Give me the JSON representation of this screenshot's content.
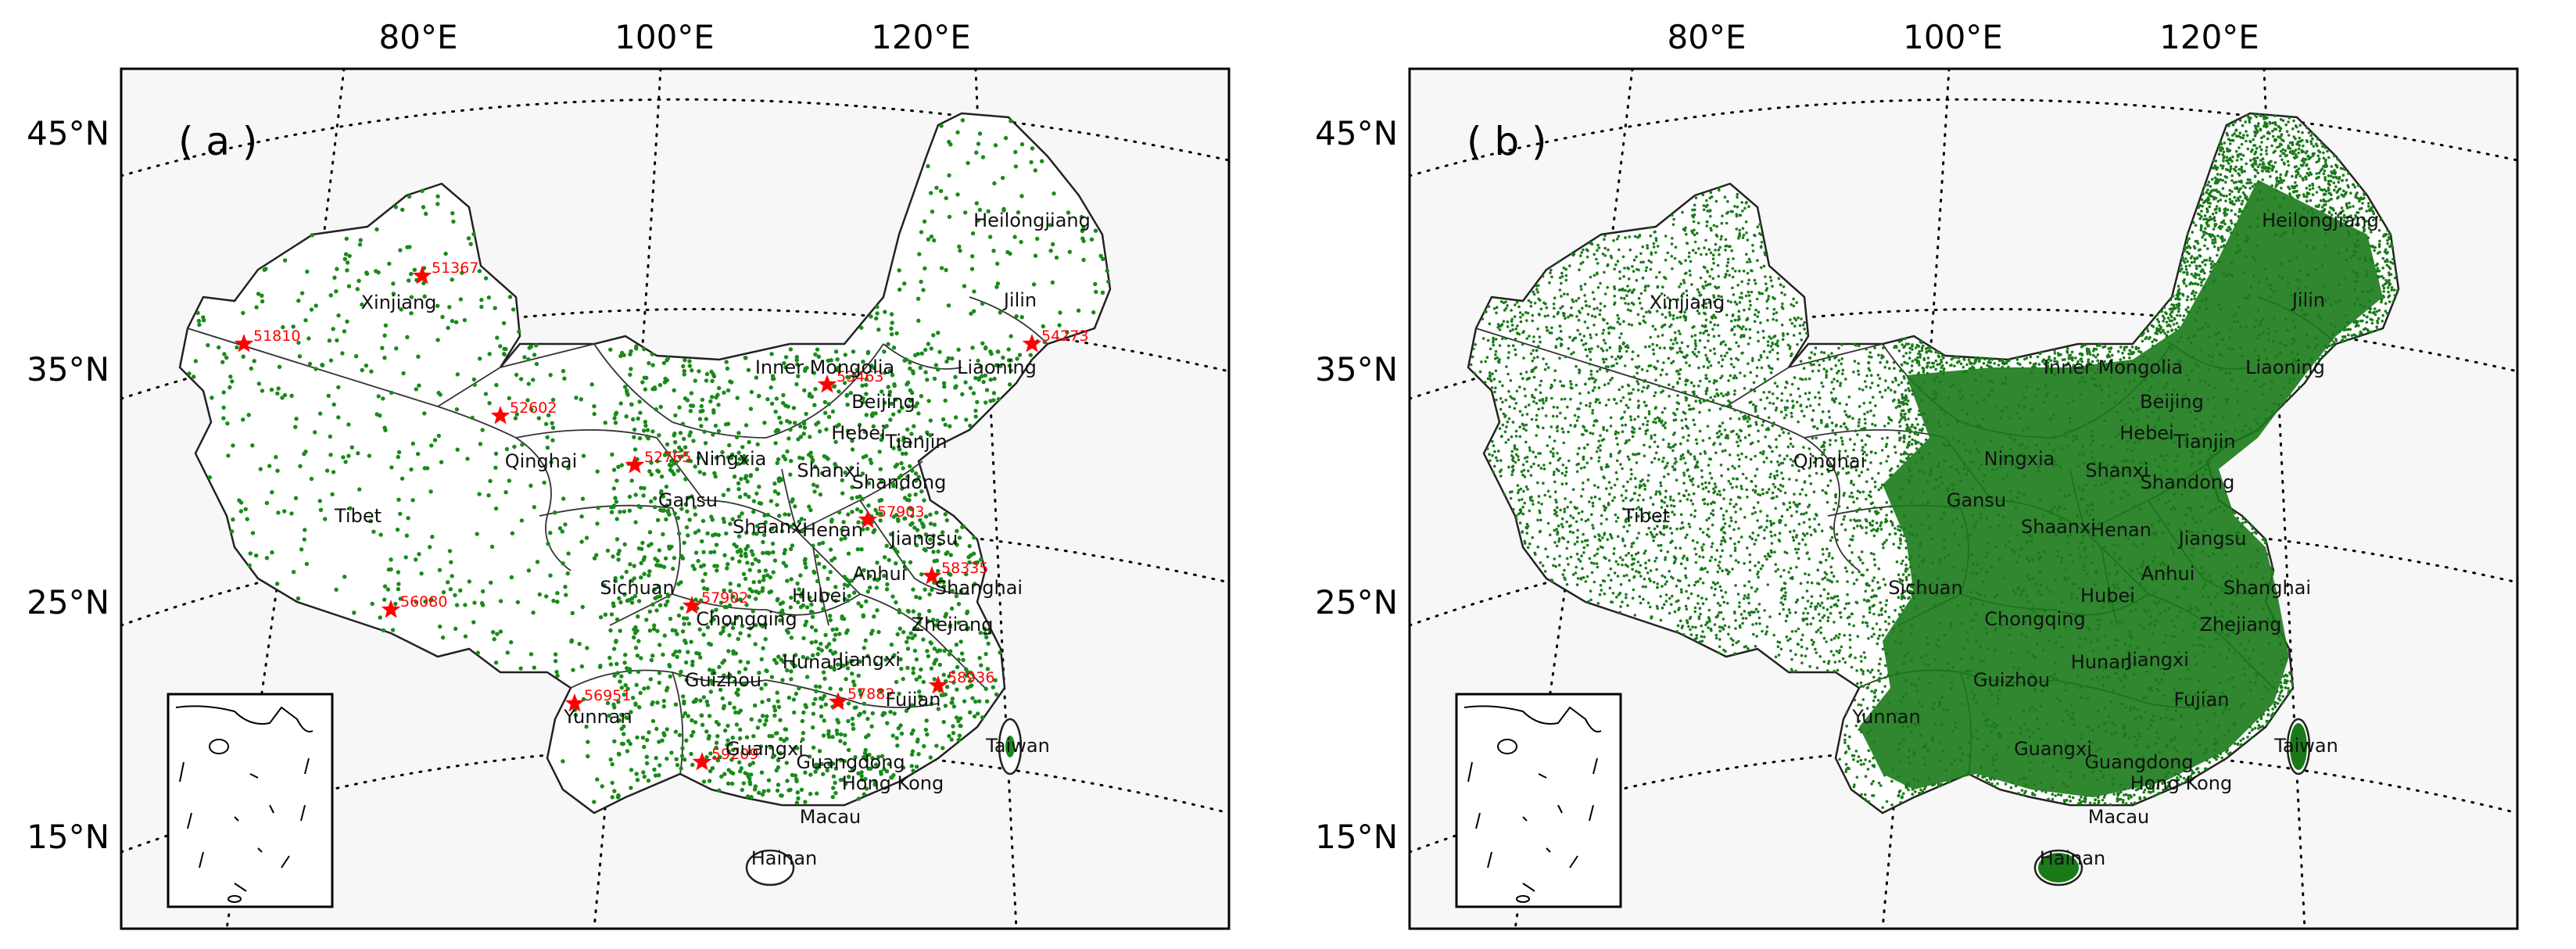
{
  "figure": {
    "panels": [
      {
        "id": "a",
        "label": "( a )",
        "lon_ticks": [
          "80°E",
          "100°E",
          "120°E"
        ],
        "lat_ticks": [
          "45°N",
          "35°N",
          "25°N",
          "15°N"
        ],
        "provinces": [
          "Heilongjiang",
          "Jilin",
          "Liaoning",
          "Inner Mongolia",
          "Beijing",
          "Tianjin",
          "Hebei",
          "Shanxi",
          "Shandong",
          "Xinjiang",
          "Qinghai",
          "Tibet",
          "Gansu",
          "Ningxia",
          "Shaanxi",
          "Henan",
          "Jiangsu",
          "Anhui",
          "Shanghai",
          "Sichuan",
          "Chongqing",
          "Hubei",
          "Zhejiang",
          "Guizhou",
          "Hunan",
          "Jiangxi",
          "Fujian",
          "Yunnan",
          "Guangxi",
          "Guangdong",
          "Taiwan",
          "Hong Kong",
          "Macau",
          "Hainan"
        ],
        "stations": [
          "51367",
          "51810",
          "52602",
          "52765",
          "53463",
          "54273",
          "57902",
          "56080",
          "57903",
          "58335",
          "56951",
          "57882",
          "58936",
          "59209"
        ],
        "points": "sparse",
        "marker_color": "#ff0000",
        "point_color": "#1a8a1a"
      },
      {
        "id": "b",
        "label": "( b )",
        "lon_ticks": [
          "80°E",
          "100°E",
          "120°E"
        ],
        "lat_ticks": [
          "45°N",
          "35°N",
          "25°N",
          "15°N"
        ],
        "provinces": [
          "Heilongjiang",
          "Jilin",
          "Liaoning",
          "Inner Mongolia",
          "Beijing",
          "Tianjin",
          "Hebei",
          "Shanxi",
          "Shandong",
          "Xinjiang",
          "Qinghai",
          "Tibet",
          "Gansu",
          "Ningxia",
          "Shaanxi",
          "Henan",
          "Jiangsu",
          "Anhui",
          "Shanghai",
          "Sichuan",
          "Chongqing",
          "Hubei",
          "Zhejiang",
          "Guizhou",
          "Hunan",
          "Jiangxi",
          "Fujian",
          "Yunnan",
          "Guangxi",
          "Guangdong",
          "Taiwan",
          "Hong Kong",
          "Macau",
          "Hainan"
        ],
        "stations": [],
        "points": "dense",
        "marker_color": "#ff0000",
        "point_color": "#1a7a1a"
      }
    ]
  }
}
